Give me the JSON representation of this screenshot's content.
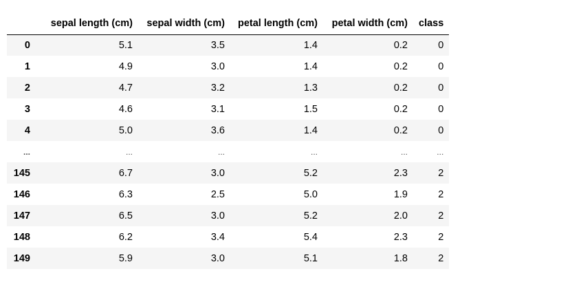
{
  "table": {
    "columns": [
      "sepal length (cm)",
      "sepal width (cm)",
      "petal length (cm)",
      "petal width (cm)",
      "class"
    ],
    "rows": [
      {
        "index": "0",
        "values": [
          "5.1",
          "3.5",
          "1.4",
          "0.2",
          "0"
        ]
      },
      {
        "index": "1",
        "values": [
          "4.9",
          "3.0",
          "1.4",
          "0.2",
          "0"
        ]
      },
      {
        "index": "2",
        "values": [
          "4.7",
          "3.2",
          "1.3",
          "0.2",
          "0"
        ]
      },
      {
        "index": "3",
        "values": [
          "4.6",
          "3.1",
          "1.5",
          "0.2",
          "0"
        ]
      },
      {
        "index": "4",
        "values": [
          "5.0",
          "3.6",
          "1.4",
          "0.2",
          "0"
        ]
      },
      {
        "index": "...",
        "values": [
          "...",
          "...",
          "...",
          "...",
          "..."
        ]
      },
      {
        "index": "145",
        "values": [
          "6.7",
          "3.0",
          "5.2",
          "2.3",
          "2"
        ]
      },
      {
        "index": "146",
        "values": [
          "6.3",
          "2.5",
          "5.0",
          "1.9",
          "2"
        ]
      },
      {
        "index": "147",
        "values": [
          "6.5",
          "3.0",
          "5.2",
          "2.0",
          "2"
        ]
      },
      {
        "index": "148",
        "values": [
          "6.2",
          "3.4",
          "5.4",
          "2.3",
          "2"
        ]
      },
      {
        "index": "149",
        "values": [
          "5.9",
          "3.0",
          "5.1",
          "1.8",
          "2"
        ]
      }
    ]
  }
}
